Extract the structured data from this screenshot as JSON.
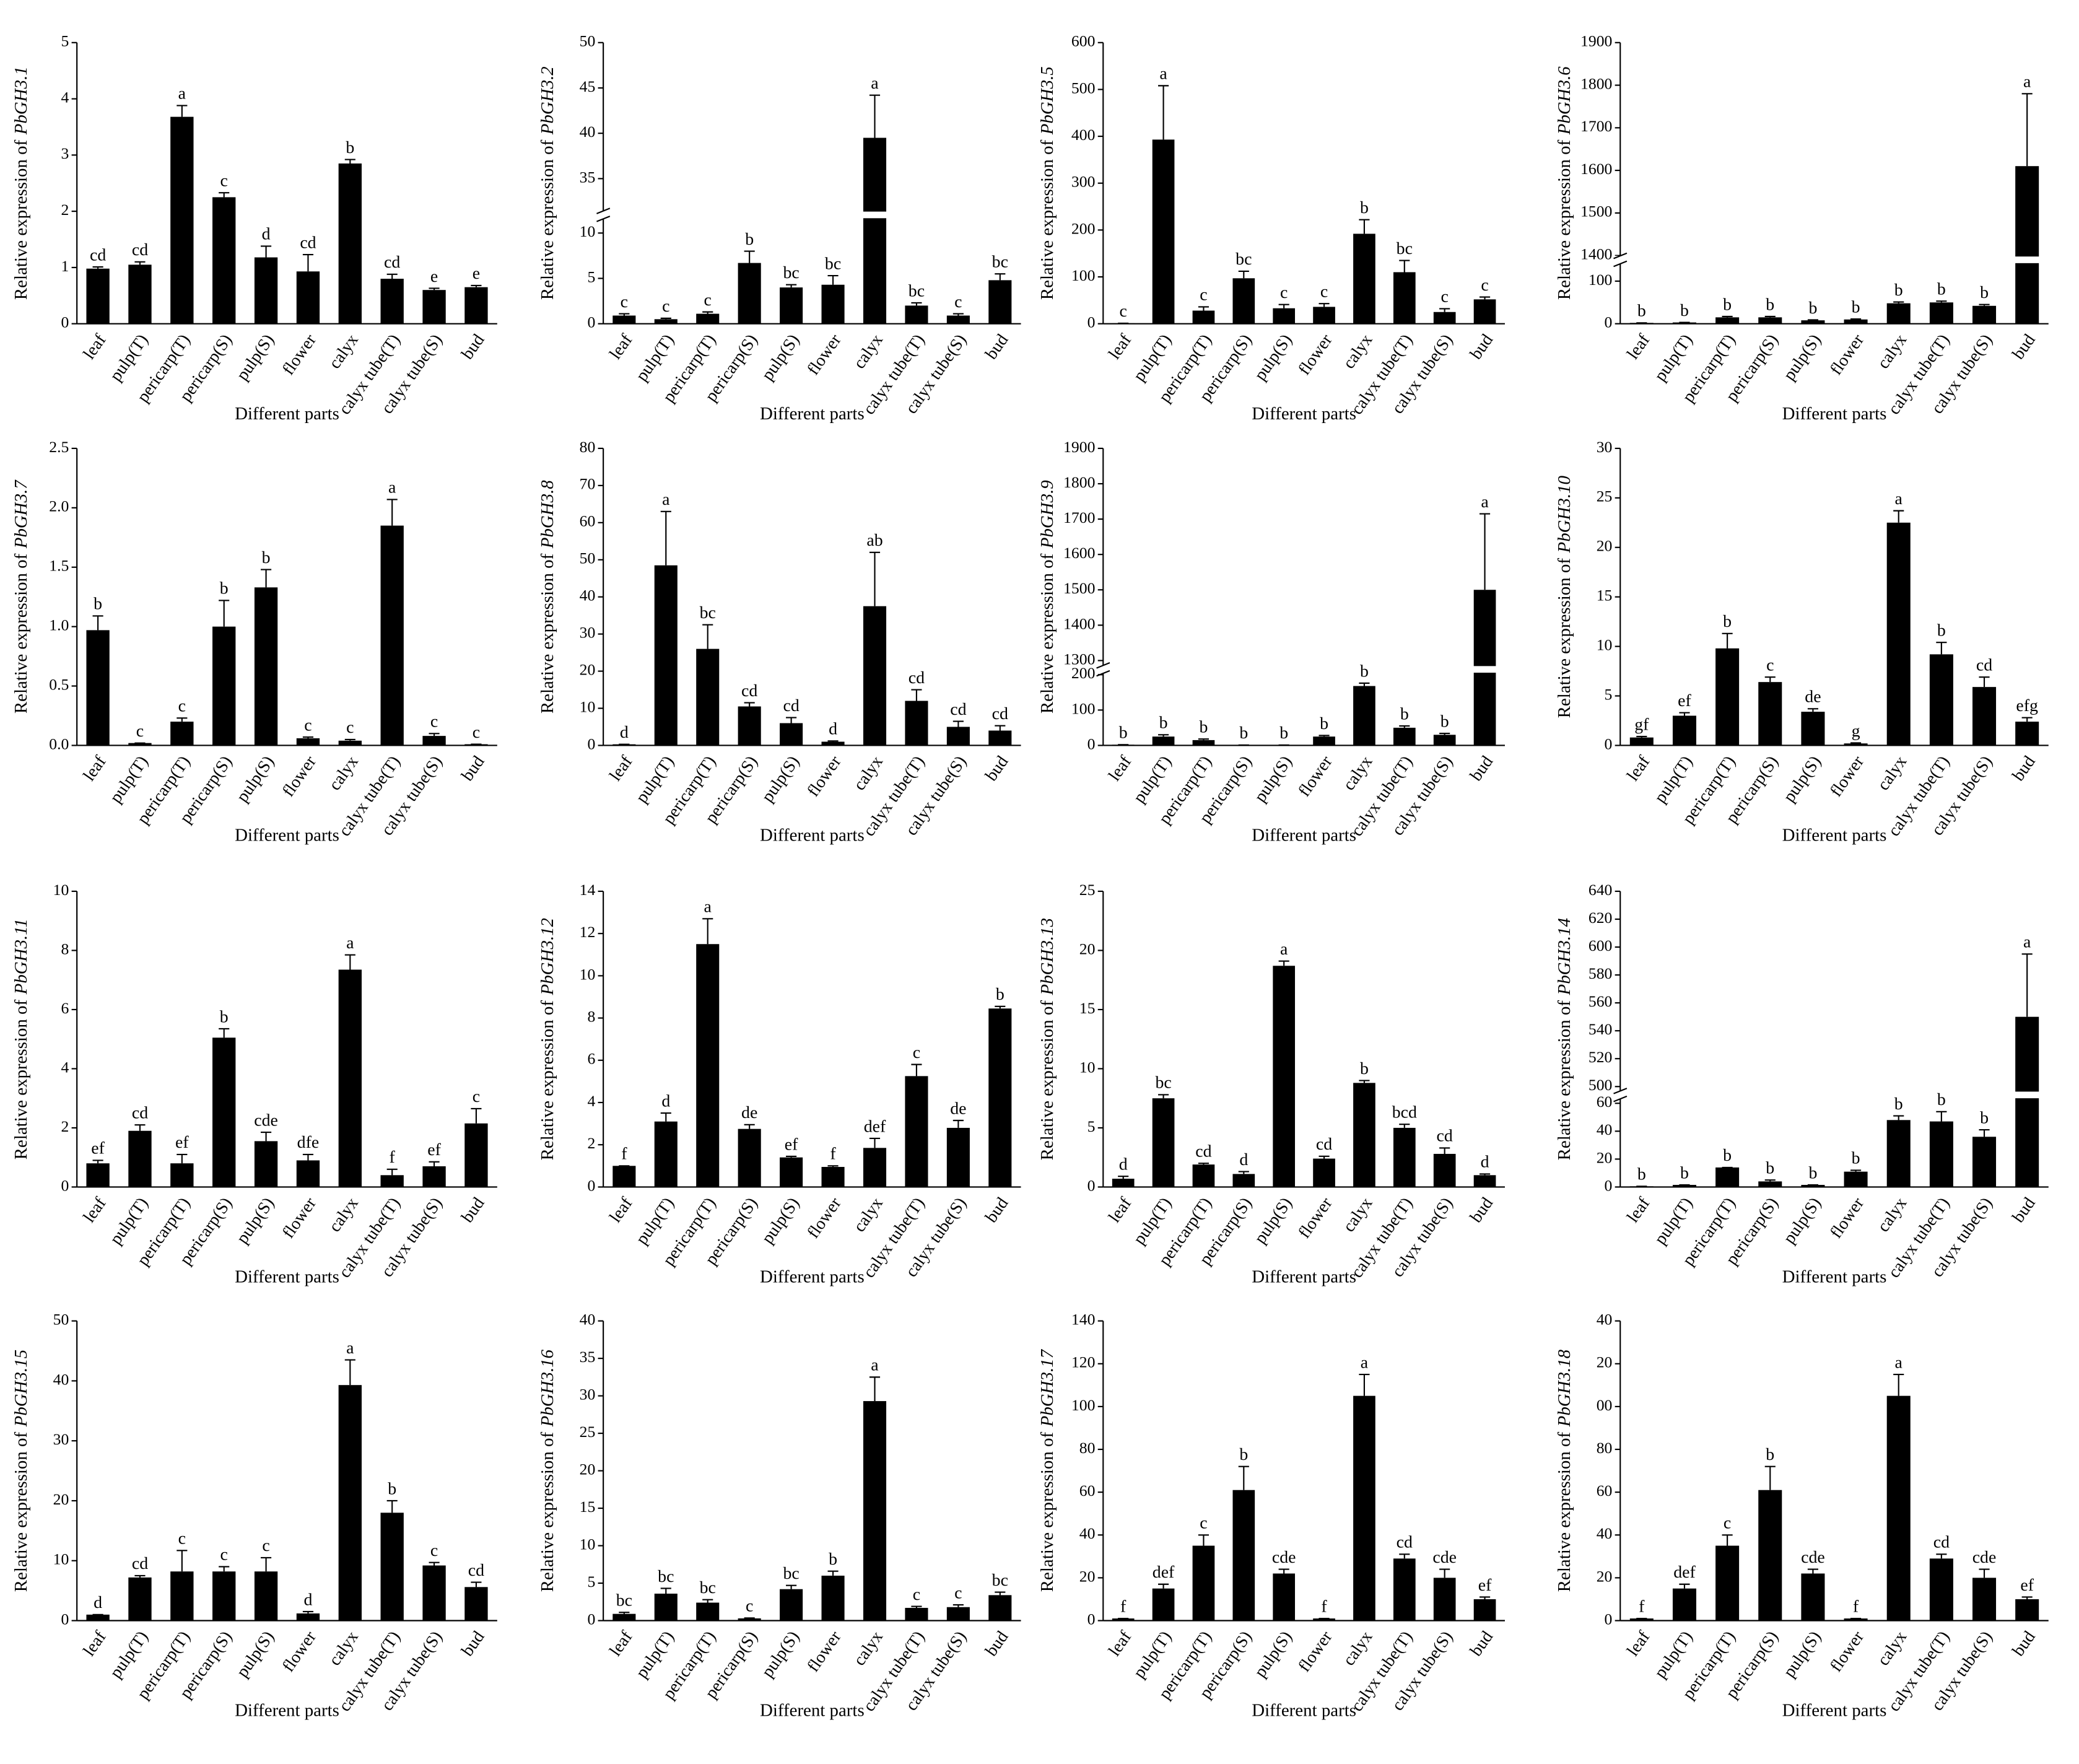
{
  "chart_data": [
    {
      "type": "bar",
      "ylabel": {
        "prefix": "Relative expression of",
        "gene": "PbGH3.1"
      },
      "xlabel": "Different parts",
      "color": "#000000",
      "categories": [
        "leaf",
        "pulp(T)",
        "pericarp(T)",
        "pericarp(S)",
        "pulp(S)",
        "flower",
        "calyx",
        "calyx tube(T)",
        "calyx tube(S)",
        "bud"
      ],
      "values": [
        0.98,
        1.05,
        3.68,
        2.25,
        1.18,
        0.93,
        2.85,
        0.8,
        0.6,
        0.65
      ],
      "errors": [
        0.03,
        0.05,
        0.2,
        0.08,
        0.2,
        0.3,
        0.07,
        0.08,
        0.03,
        0.03
      ],
      "letters": [
        "cd",
        "cd",
        "a",
        "c",
        "d",
        "cd",
        "b",
        "cd",
        "e",
        "e"
      ],
      "ylim": [
        0,
        5
      ],
      "yticks": [
        0,
        1,
        2,
        3,
        4,
        5
      ]
    },
    {
      "type": "bar",
      "ylabel": {
        "prefix": "Relative expression of",
        "gene": "PbGH3.2"
      },
      "xlabel": "Different parts",
      "color": "#000000",
      "categories": [
        "leaf",
        "pulp(T)",
        "pericarp(T)",
        "pericarp(S)",
        "pulp(S)",
        "flower",
        "calyx",
        "calyx tube(T)",
        "calyx tube(S)",
        "bud"
      ],
      "values": [
        0.9,
        0.5,
        1.1,
        6.7,
        4.0,
        4.3,
        39.5,
        2.0,
        0.9,
        4.8
      ],
      "errors": [
        0.2,
        0.1,
        0.2,
        1.3,
        0.3,
        1.0,
        4.7,
        0.3,
        0.2,
        0.7
      ],
      "letters": [
        "c",
        "c",
        "c",
        "b",
        "bc",
        "bc",
        "a",
        "bc",
        "c",
        "bc"
      ],
      "ylim": [
        0,
        50
      ],
      "yticks": [
        0,
        5,
        10,
        35,
        40,
        45,
        50
      ],
      "ybreak": [
        12,
        31
      ]
    },
    {
      "type": "bar",
      "ylabel": {
        "prefix": "Relative expression of",
        "gene": "PbGH3.5"
      },
      "xlabel": "Different parts",
      "color": "#000000",
      "categories": [
        "leaf",
        "pulp(T)",
        "pericarp(T)",
        "pericarp(S)",
        "pulp(S)",
        "flower",
        "calyx",
        "calyx tube(T)",
        "calyx tube(S)",
        "bud"
      ],
      "values": [
        1,
        393,
        28,
        97,
        33,
        36,
        192,
        110,
        25,
        52
      ],
      "errors": [
        0,
        115,
        8,
        15,
        8,
        7,
        30,
        25,
        7,
        5
      ],
      "letters": [
        "c",
        "a",
        "c",
        "bc",
        "c",
        "c",
        "b",
        "bc",
        "c",
        "c"
      ],
      "ylim": [
        0,
        600
      ],
      "yticks": [
        0,
        100,
        200,
        300,
        400,
        500,
        600
      ]
    },
    {
      "type": "bar",
      "ylabel": {
        "prefix": "Relative expression of",
        "gene": "PbGH3.6"
      },
      "xlabel": "Different parts",
      "color": "#000000",
      "categories": [
        "leaf",
        "pulp(T)",
        "pericarp(T)",
        "pericarp(S)",
        "pulp(S)",
        "flower",
        "calyx",
        "calyx tube(T)",
        "calyx tube(S)",
        "bud"
      ],
      "values": [
        2,
        3,
        15,
        15,
        8,
        10,
        48,
        50,
        42,
        1610
      ],
      "errors": [
        0,
        0,
        2,
        2,
        1,
        1,
        3,
        3,
        3,
        170
      ],
      "letters": [
        "b",
        "b",
        "b",
        "b",
        "b",
        "b",
        "b",
        "b",
        "b",
        "a"
      ],
      "ylim": [
        0,
        1900
      ],
      "yticks": [
        0,
        100,
        1400,
        1500,
        1600,
        1700,
        1800,
        1900
      ],
      "ybreak": [
        150,
        1390
      ]
    },
    {
      "type": "bar",
      "ylabel": {
        "prefix": "Relative expression of",
        "gene": "PbGH3.7"
      },
      "xlabel": "Different parts",
      "color": "#000000",
      "categories": [
        "leaf",
        "pulp(T)",
        "pericarp(T)",
        "pericarp(S)",
        "pulp(S)",
        "flower",
        "calyx",
        "calyx tube(T)",
        "calyx tube(S)",
        "bud"
      ],
      "values": [
        0.97,
        0.02,
        0.2,
        1.0,
        1.33,
        0.06,
        0.04,
        1.85,
        0.08,
        0.01
      ],
      "errors": [
        0.12,
        0,
        0.03,
        0.22,
        0.15,
        0.01,
        0.01,
        0.22,
        0.02,
        0
      ],
      "letters": [
        "b",
        "c",
        "c",
        "b",
        "b",
        "c",
        "c",
        "a",
        "c",
        "c"
      ],
      "ylim": [
        0,
        2.5
      ],
      "yticks": [
        {
          "value": 0,
          "label": "0.0"
        },
        0.5,
        {
          "value": 1,
          "label": "1.0"
        },
        1.5,
        {
          "value": 2,
          "label": "2.0"
        },
        2.5
      ]
    },
    {
      "type": "bar",
      "ylabel": {
        "prefix": "Relative expression of",
        "gene": "PbGH3.8"
      },
      "xlabel": "Different parts",
      "color": "#000000",
      "categories": [
        "leaf",
        "pulp(T)",
        "pericarp(T)",
        "pericarp(S)",
        "pulp(S)",
        "flower",
        "calyx",
        "calyx tube(T)",
        "calyx tube(S)",
        "bud"
      ],
      "values": [
        0.3,
        48.5,
        26,
        10.5,
        6,
        1,
        37.5,
        12,
        5,
        4
      ],
      "errors": [
        0,
        14.5,
        6.5,
        1,
        1.5,
        0.2,
        14.5,
        3,
        1.5,
        1.3
      ],
      "letters": [
        "d",
        "a",
        "bc",
        "cd",
        "cd",
        "d",
        "ab",
        "cd",
        "cd",
        "cd"
      ],
      "ylim": [
        0,
        80
      ],
      "yticks": [
        0,
        10,
        20,
        30,
        40,
        50,
        60,
        70,
        80
      ]
    },
    {
      "type": "bar",
      "ylabel": {
        "prefix": "Relative expression of",
        "gene": "PbGH3.9"
      },
      "xlabel": "Different parts",
      "color": "#000000",
      "categories": [
        "leaf",
        "pulp(T)",
        "pericarp(T)",
        "pericarp(S)",
        "pulp(S)",
        "flower",
        "calyx",
        "calyx tube(T)",
        "calyx tube(S)",
        "bud"
      ],
      "values": [
        2,
        25,
        15,
        1,
        1,
        25,
        168,
        50,
        30,
        1500
      ],
      "errors": [
        0,
        5,
        3,
        0,
        0,
        3,
        8,
        5,
        4,
        215
      ],
      "letters": [
        "b",
        "b",
        "b",
        "b",
        "b",
        "b",
        "b",
        "b",
        "b",
        "a"
      ],
      "ylim": [
        0,
        1900
      ],
      "yticks": [
        0,
        100,
        200,
        1300,
        1400,
        1500,
        1600,
        1700,
        1800,
        1900
      ],
      "ybreak": [
        215,
        1275
      ]
    },
    {
      "type": "bar",
      "ylabel": {
        "prefix": "Relative expression of",
        "gene": "PbGH3.10"
      },
      "xlabel": "Different parts",
      "color": "#000000",
      "categories": [
        "leaf",
        "pulp(T)",
        "pericarp(T)",
        "pericarp(S)",
        "pulp(S)",
        "flower",
        "calyx",
        "calyx tube(T)",
        "calyx tube(S)",
        "bud"
      ],
      "values": [
        0.8,
        3.0,
        9.8,
        6.4,
        3.4,
        0.2,
        22.5,
        9.2,
        5.9,
        2.4
      ],
      "errors": [
        0.1,
        0.3,
        1.5,
        0.5,
        0.3,
        0.05,
        1.2,
        1.2,
        1.0,
        0.4
      ],
      "letters": [
        "gf",
        "ef",
        "b",
        "c",
        "de",
        "g",
        "a",
        "b",
        "cd",
        "efg"
      ],
      "ylim": [
        0,
        30
      ],
      "yticks": [
        0,
        5,
        10,
        15,
        20,
        25,
        30
      ]
    },
    {
      "type": "bar",
      "ylabel": {
        "prefix": "Relative expression of",
        "gene": "PbGH3.11"
      },
      "xlabel": "Different parts",
      "color": "#000000",
      "categories": [
        "leaf",
        "pulp(T)",
        "pericarp(T)",
        "pericarp(S)",
        "pulp(S)",
        "flower",
        "calyx",
        "calyx tube(T)",
        "calyx tube(S)",
        "bud"
      ],
      "values": [
        0.8,
        1.9,
        0.8,
        5.05,
        1.55,
        0.9,
        7.35,
        0.4,
        0.7,
        2.15
      ],
      "errors": [
        0.1,
        0.2,
        0.3,
        0.3,
        0.3,
        0.2,
        0.5,
        0.2,
        0.15,
        0.5
      ],
      "letters": [
        "ef",
        "cd",
        "ef",
        "b",
        "cde",
        "dfe",
        "a",
        "f",
        "ef",
        "c"
      ],
      "ylim": [
        0,
        10
      ],
      "yticks": [
        0,
        2,
        4,
        6,
        8,
        10
      ]
    },
    {
      "type": "bar",
      "ylabel": {
        "prefix": "Relative expression of",
        "gene": "PbGH3.12"
      },
      "xlabel": "Different parts",
      "color": "#000000",
      "categories": [
        "leaf",
        "pulp(T)",
        "pericarp(T)",
        "pericarp(S)",
        "pulp(S)",
        "flower",
        "calyx",
        "calyx tube(T)",
        "calyx tube(S)",
        "bud"
      ],
      "values": [
        1.0,
        3.1,
        11.5,
        2.75,
        1.4,
        0.95,
        1.85,
        5.25,
        2.8,
        8.45
      ],
      "errors": [
        0,
        0.4,
        1.2,
        0.2,
        0.05,
        0.05,
        0.45,
        0.55,
        0.35,
        0.1
      ],
      "letters": [
        "f",
        "d",
        "a",
        "de",
        "ef",
        "f",
        "def",
        "c",
        "de",
        "b"
      ],
      "ylim": [
        0,
        14
      ],
      "yticks": [
        0,
        2,
        4,
        6,
        8,
        10,
        12,
        14
      ]
    },
    {
      "type": "bar",
      "ylabel": {
        "prefix": "Relative expression of",
        "gene": "PbGH3.13"
      },
      "xlabel": "Different parts",
      "color": "#000000",
      "categories": [
        "leaf",
        "pulp(T)",
        "pericarp(T)",
        "pericarp(S)",
        "pulp(S)",
        "flower",
        "calyx",
        "calyx tube(T)",
        "calyx tube(S)",
        "bud"
      ],
      "values": [
        0.7,
        7.5,
        1.9,
        1.1,
        18.7,
        2.4,
        8.8,
        5.0,
        2.8,
        1.0
      ],
      "errors": [
        0.2,
        0.3,
        0.1,
        0.2,
        0.4,
        0.2,
        0.2,
        0.3,
        0.5,
        0.1
      ],
      "letters": [
        "d",
        "bc",
        "cd",
        "d",
        "a",
        "cd",
        "b",
        "bcd",
        "cd",
        "d"
      ],
      "ylim": [
        0,
        25
      ],
      "yticks": [
        0,
        5,
        10,
        15,
        20,
        25
      ]
    },
    {
      "type": "bar",
      "ylabel": {
        "prefix": "Relative expression of",
        "gene": "PbGH3.14"
      },
      "xlabel": "Different parts",
      "color": "#000000",
      "categories": [
        "leaf",
        "pulp(T)",
        "pericarp(T)",
        "pericarp(S)",
        "pulp(S)",
        "flower",
        "calyx",
        "calyx tube(T)",
        "calyx tube(S)",
        "bud"
      ],
      "values": [
        0.5,
        1.5,
        14,
        4,
        1.5,
        11,
        48,
        47,
        36,
        550
      ],
      "errors": [
        0,
        0,
        0,
        1,
        0,
        1,
        3,
        7,
        5,
        45
      ],
      "letters": [
        "b",
        "b",
        "b",
        "b",
        "b",
        "b",
        "b",
        "b",
        "b",
        "a"
      ],
      "ylim": [
        0,
        640
      ],
      "yticks": [
        0,
        20,
        40,
        60,
        500,
        520,
        540,
        560,
        580,
        600,
        620,
        640
      ],
      "ybreak": [
        66,
        494
      ]
    },
    {
      "type": "bar",
      "ylabel": {
        "prefix": "Relative expression of",
        "gene": "PbGH3.15"
      },
      "xlabel": "Different parts",
      "color": "#000000",
      "categories": [
        "leaf",
        "pulp(T)",
        "pericarp(T)",
        "pericarp(S)",
        "pulp(S)",
        "flower",
        "calyx",
        "calyx tube(T)",
        "calyx tube(S)",
        "bud"
      ],
      "values": [
        1,
        7.2,
        8.2,
        8.2,
        8.2,
        1.2,
        39.3,
        18,
        9.2,
        5.6
      ],
      "errors": [
        0,
        0.3,
        3.5,
        0.8,
        2.3,
        0.3,
        4.2,
        2,
        0.5,
        0.8
      ],
      "letters": [
        "d",
        "cd",
        "c",
        "c",
        "c",
        "d",
        "a",
        "b",
        "c",
        "cd"
      ],
      "ylim": [
        0,
        50
      ],
      "yticks": [
        0,
        10,
        20,
        30,
        40,
        50
      ]
    },
    {
      "type": "bar",
      "ylabel": {
        "prefix": "Relative expression of",
        "gene": "PbGH3.16"
      },
      "xlabel": "Different parts",
      "color": "#000000",
      "categories": [
        "leaf",
        "pulp(T)",
        "pericarp(T)",
        "pericarp(S)",
        "pulp(S)",
        "flower",
        "calyx",
        "calyx tube(T)",
        "calyx tube(S)",
        "bud"
      ],
      "values": [
        0.9,
        3.6,
        2.4,
        0.3,
        4.2,
        6.0,
        29.3,
        1.7,
        1.8,
        3.4
      ],
      "errors": [
        0.2,
        0.7,
        0.4,
        0.05,
        0.5,
        0.6,
        3.2,
        0.2,
        0.3,
        0.4
      ],
      "letters": [
        "bc",
        "bc",
        "bc",
        "c",
        "bc",
        "b",
        "a",
        "c",
        "c",
        "bc"
      ],
      "ylim": [
        0,
        40
      ],
      "yticks": [
        0,
        5,
        10,
        15,
        20,
        25,
        30,
        35,
        40
      ]
    },
    {
      "type": "bar",
      "ylabel": {
        "prefix": "Relative expression of",
        "gene": "PbGH3.17"
      },
      "xlabel": "Different parts",
      "color": "#000000",
      "categories": [
        "leaf",
        "pulp(T)",
        "pericarp(T)",
        "pericarp(S)",
        "pulp(S)",
        "flower",
        "calyx",
        "calyx tube(T)",
        "calyx tube(S)",
        "bud"
      ],
      "values": [
        1,
        15,
        35,
        61,
        22,
        1,
        105,
        29,
        20,
        10
      ],
      "errors": [
        0,
        2,
        5,
        11,
        2,
        0,
        10,
        2,
        4,
        1
      ],
      "letters": [
        "f",
        "def",
        "c",
        "b",
        "cde",
        "f",
        "a",
        "cd",
        "cde",
        "ef"
      ],
      "ylim": [
        0,
        140
      ],
      "yticks": [
        0,
        20,
        40,
        60,
        80,
        100,
        120,
        140
      ]
    },
    {
      "type": "bar",
      "ylabel": {
        "prefix": "Relative expression of",
        "gene": "PbGH3.18"
      },
      "xlabel": "Different parts",
      "color": "#000000",
      "categories": [
        "leaf",
        "pulp(T)",
        "pericarp(T)",
        "pericarp(S)",
        "pulp(S)",
        "flower",
        "calyx",
        "calyx tube(T)",
        "calyx tube(S)",
        "bud"
      ],
      "values": [
        1,
        15,
        35,
        61,
        22,
        1,
        105,
        29,
        20,
        10
      ],
      "errors": [
        0,
        2,
        5,
        11,
        2,
        0,
        10,
        2,
        4,
        1
      ],
      "letters": [
        "f",
        "def",
        "c",
        "b",
        "cde",
        "f",
        "a",
        "cd",
        "cde",
        "ef"
      ],
      "ylim": [
        0,
        140
      ],
      "yticks": [
        0,
        20,
        40,
        60,
        80,
        {
          "value": 100,
          "label": "00"
        },
        {
          "value": 120,
          "label": "20"
        },
        {
          "value": 140,
          "label": "40"
        }
      ]
    }
  ]
}
